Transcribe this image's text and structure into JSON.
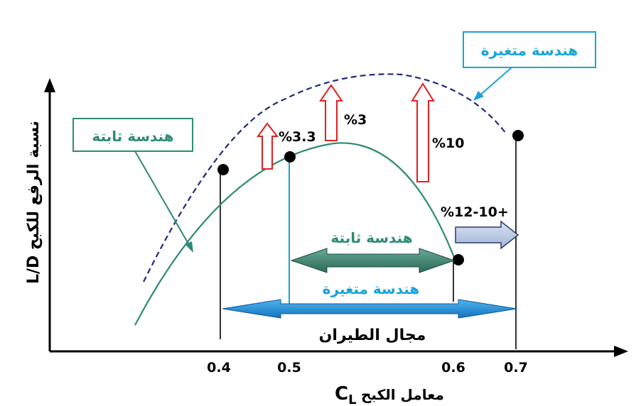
{
  "chart_data": {
    "type": "line",
    "ylabel": "L/D نسبة الرفع للكبح",
    "xlabel": "معامل الكبح",
    "xlabel_symbol": "C",
    "xlabel_sub": "L",
    "x_ticks": [
      "0.4",
      "0.5",
      "0.6",
      "0.7"
    ],
    "series": [
      {
        "name": "هندسة ثابتة",
        "style": "solid",
        "color": "#2e8b74"
      },
      {
        "name": "هندسة متغيرة",
        "style": "dashed",
        "color": "#1f2a80"
      }
    ],
    "points": [
      {
        "x": 0.4,
        "series": "variable"
      },
      {
        "x": 0.5,
        "series": "fixed"
      },
      {
        "x": 0.6,
        "series": "fixed"
      },
      {
        "x": 0.7,
        "series": "variable"
      }
    ],
    "annotations": {
      "gain_1": "%3.3",
      "gain_2": "%3",
      "gain_3": "%10",
      "range_gain": "%12-10+",
      "fixed_range_label": "هندسة ثابتة",
      "variable_range_label": "هندسة متغيرة",
      "flight_range_label": "مجال الطيران"
    },
    "callouts": {
      "fixed": "هندسة ثابتة",
      "variable": "هندسة متغيرة"
    },
    "colors": {
      "fixed": "#2e8b74",
      "variable_text": "#1aa3d9",
      "dashed_curve": "#1f2a80",
      "red_arrow": "#e02020",
      "blue_arrow": "#1a8ad4",
      "light_arrow": "#b8c8e8"
    }
  }
}
